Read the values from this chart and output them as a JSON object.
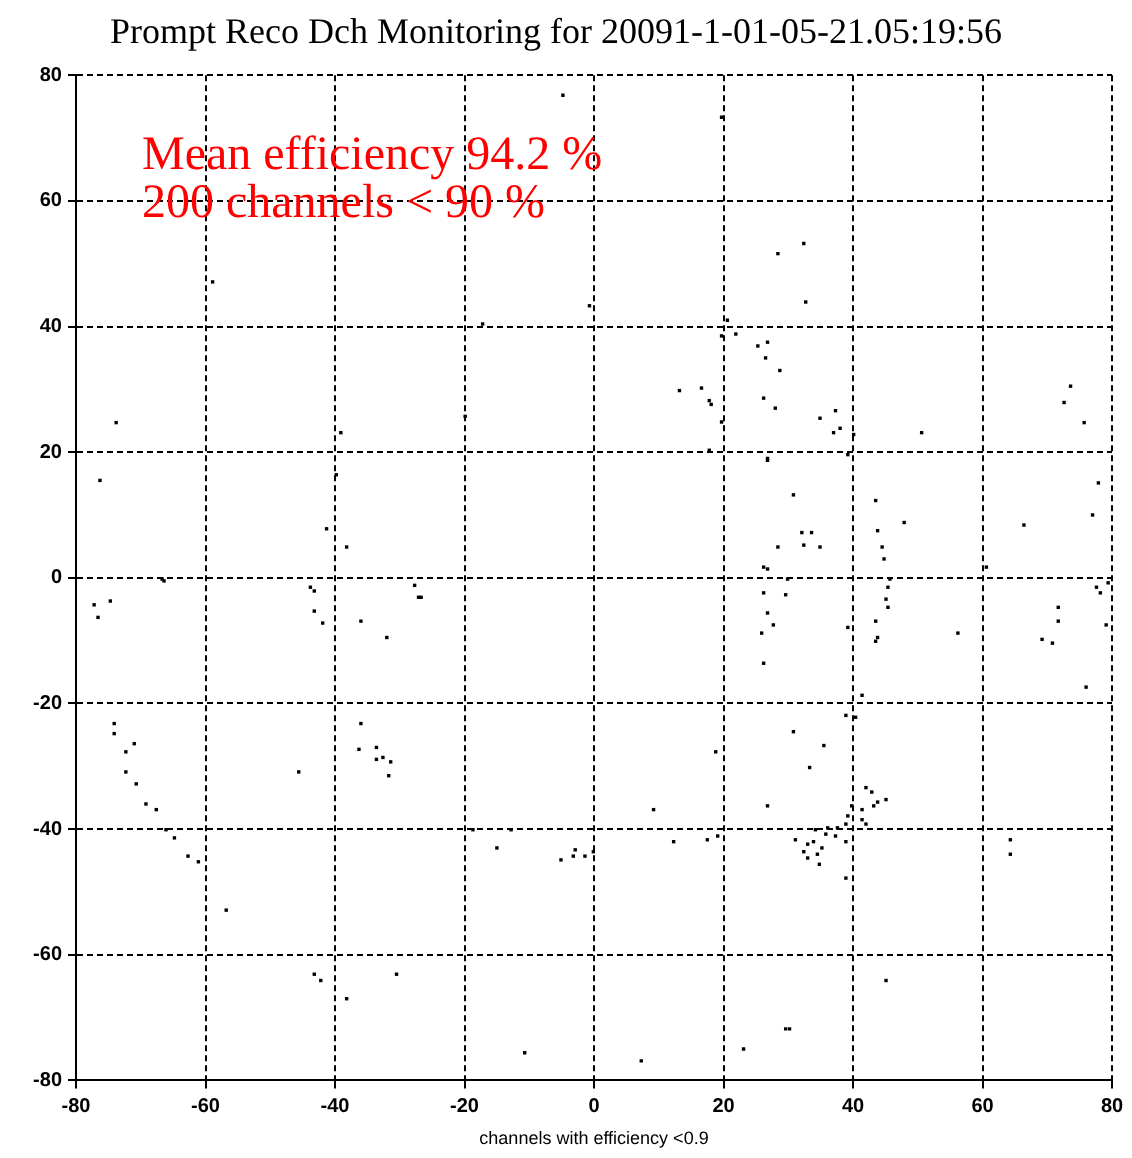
{
  "chart_data": {
    "type": "scatter",
    "title": "Prompt Reco Dch Monitoring for 20091-1-01-05-21.05:19:56",
    "xlabel": "channels with efficiency <0.9",
    "annotations": [
      "Mean efficiency 94.2 %",
      "200 channels < 90 %"
    ],
    "xlim": [
      -80,
      80
    ],
    "xticks": [
      -80,
      -60,
      -40,
      -20,
      0,
      20,
      40,
      60,
      80
    ],
    "ylim": [
      -80,
      80
    ],
    "yticks": [
      -80,
      -60,
      -40,
      -20,
      0,
      20,
      40,
      60,
      80
    ],
    "grid": true,
    "marker": "square",
    "legend": false,
    "series": [
      {
        "color": "#000000",
        "x": [
          -4.8,
          19.7,
          -0.7,
          -17.2,
          20.6,
          19.7,
          21.9,
          25.3,
          26.5,
          13.2,
          16.6,
          17.8,
          18.1,
          19.7,
          26.2,
          -19.9,
          17.8,
          26.8,
          26.2,
          -58.9,
          -73.8,
          -39.1,
          -76.3,
          -39.8,
          -41.3,
          -38.2,
          -66.7,
          32.4,
          28.4,
          32.7,
          26.8,
          28.7,
          28,
          34.9,
          37.3,
          37,
          38,
          40.1,
          39.2,
          50.6,
          73.6,
          72.6,
          75.7,
          26.8,
          30.8,
          32.1,
          33.6,
          28.4,
          32.4,
          34.9,
          43.5,
          47.9,
          43.8,
          44.5,
          44.8,
          26.8,
          29.9,
          45.7,
          60.6,
          66.4,
          77.9,
          77,
          -66.4,
          -77.2,
          -74.7,
          -76.6,
          -43.8,
          -43.2,
          -43.2,
          -41.9,
          -36,
          -32,
          -27.7,
          -27.1,
          -74.1,
          -74.1,
          -71,
          -72.3,
          -72.3,
          -70.7,
          -69.2,
          -67.6,
          -66.1,
          -64.8,
          -62.7,
          -61.1,
          -56.8,
          -45.6,
          -36,
          -36.3,
          -33.6,
          -33.6,
          -32.6,
          -31.4,
          -31.7,
          -43.2,
          -42.2,
          -38.2,
          -30.5,
          -26.7,
          -18.7,
          -12.8,
          -15,
          -5.1,
          -3.2,
          -2.9,
          -1.4,
          -0.1,
          -10.7,
          7.3,
          23.1,
          9.2,
          18.8,
          26.8,
          12.3,
          17.5,
          19.1,
          26.2,
          26.8,
          25.9,
          26.2,
          29.6,
          27.7,
          39.2,
          45.4,
          45.1,
          45.4,
          43.5,
          43.8,
          43.5,
          56.2,
          71.7,
          71.7,
          69.2,
          70.8,
          76,
          77.6,
          78.2,
          79.4,
          79.1,
          41.4,
          38.9,
          40.4,
          30.8,
          35.5,
          33.3,
          42,
          42.9,
          43.8,
          45.1,
          43.2,
          39.8,
          39.2,
          41.4,
          41.4,
          37.6,
          38.9,
          36.1,
          35.8,
          34.2,
          37.3,
          38.9,
          31.1,
          33.9,
          35.2,
          33,
          32.4,
          33,
          34.5,
          34.8,
          38.9,
          42,
          64.3,
          64.3,
          45.1,
          29.6,
          30.2
        ],
        "values": [
          76.8,
          73.3,
          43.3,
          40.4,
          41,
          38.5,
          38.8,
          36.9,
          35,
          29.8,
          30.2,
          28.2,
          27.6,
          24.8,
          28.6,
          25.7,
          20.3,
          19,
          1.7,
          47.1,
          24.7,
          23.1,
          15.5,
          16.4,
          7.8,
          4.9,
          -0.2,
          53.2,
          51.6,
          43.9,
          37.5,
          33,
          27,
          25.4,
          26.6,
          23.1,
          23.8,
          22.8,
          19.6,
          23.1,
          30.5,
          27.9,
          24.7,
          18.7,
          13.2,
          7.2,
          7.2,
          4.9,
          5.2,
          4.9,
          12.3,
          8.8,
          7.5,
          4.9,
          3,
          1.4,
          -0.2,
          -0.2,
          1.7,
          8.4,
          15.1,
          10,
          -0.5,
          -4.3,
          -3.7,
          -6.3,
          -1.5,
          -2.1,
          -5.3,
          -7.2,
          -6.9,
          -9.5,
          -1.2,
          -3.1,
          -23.2,
          -24.8,
          -26.4,
          -27.7,
          -30.9,
          -32.8,
          -36,
          -36.9,
          -40.1,
          -41.4,
          -44.3,
          -45.2,
          -52.9,
          -30.9,
          -23.2,
          -27.3,
          -27,
          -28.9,
          -28.6,
          -29.3,
          -31.5,
          -63.1,
          -64.1,
          -67,
          -63.1,
          -3.1,
          -40.1,
          -40.1,
          -43,
          -44.9,
          -44.3,
          -43.3,
          -44.3,
          -43.6,
          -75.6,
          -76.9,
          -75,
          -36.9,
          -27.7,
          -36.3,
          -42,
          -41.7,
          -41.1,
          -2.4,
          -5.6,
          -8.8,
          -13.6,
          -2.7,
          -7.5,
          -7.9,
          -1.5,
          -3.4,
          -4.7,
          -6.9,
          -9.5,
          -10.1,
          -8.8,
          -4.7,
          -6.9,
          -9.8,
          -10.4,
          -17.4,
          -1.5,
          -2.4,
          -0.8,
          -7.5,
          -18.7,
          -21.9,
          -22.2,
          -24.5,
          -26.7,
          -30.2,
          -33.4,
          -34.1,
          -35.7,
          -35.3,
          -36.3,
          -36.3,
          -37.9,
          -36.9,
          -38.5,
          -39.8,
          -39.2,
          -39.8,
          -40.8,
          -40.1,
          -41.1,
          -42,
          -41.7,
          -42,
          -43,
          -42.4,
          -43.6,
          -44.6,
          -44,
          -45.6,
          -47.8,
          -39.2,
          -41.7,
          -44,
          -64.1,
          -71.8,
          -71.8
        ]
      }
    ]
  }
}
